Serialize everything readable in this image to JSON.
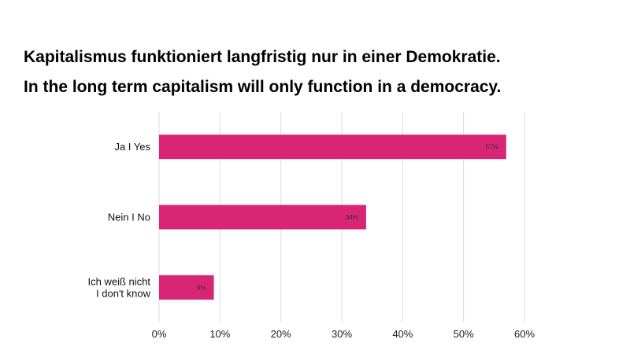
{
  "titles": {
    "line1": "Kapitalismus funktioniert langfristig nur in einer Demokratie.",
    "line2": "In the long term capitalism will only function in a democracy."
  },
  "chart_data": {
    "type": "bar",
    "orientation": "horizontal",
    "title": "Kapitalismus funktioniert langfristig nur in einer Demokratie. / In the long term capitalism will only function in a democracy.",
    "categories": [
      [
        "Ja I Yes"
      ],
      [
        "Nein I No"
      ],
      [
        "Ich weiß nicht",
        "I don't know"
      ]
    ],
    "values": [
      57,
      34,
      9
    ],
    "value_labels": [
      "57%",
      "34%",
      "9%"
    ],
    "xlim": [
      0,
      60
    ],
    "xticks": [
      0,
      10,
      20,
      30,
      40,
      50,
      60
    ],
    "xtick_labels": [
      "0%",
      "10%",
      "20%",
      "30%",
      "40%",
      "50%",
      "60%"
    ],
    "xlabel": "",
    "ylabel": "",
    "grid": true,
    "legend": "none",
    "colors": {
      "bar": "#d92575",
      "grid": "#dddddd"
    }
  }
}
